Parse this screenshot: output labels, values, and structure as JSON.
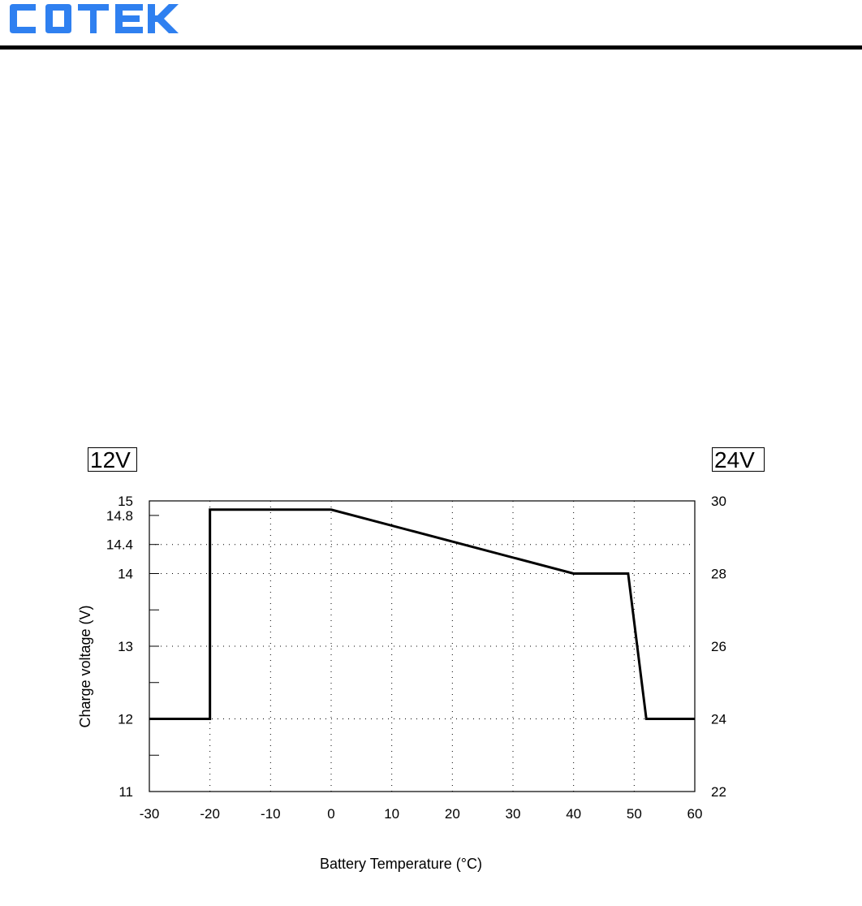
{
  "header": {
    "logo_text": "COTEK",
    "logo_color": "#2f80f0"
  },
  "badges": {
    "left": "12V",
    "right": "24V"
  },
  "chart_data": {
    "type": "line",
    "xlabel": "Battery Temperature (°C)",
    "ylabel": "Charge voltage (V)",
    "xlim": [
      -30,
      60
    ],
    "ylim": [
      11,
      15
    ],
    "y2lim": [
      22,
      30
    ],
    "x_ticks": [
      -30,
      -20,
      -10,
      0,
      10,
      20,
      30,
      40,
      50,
      60
    ],
    "x_tick_labels": [
      "-30",
      "-20",
      "-10",
      "0",
      "10",
      "20",
      "30",
      "40",
      "50",
      "60"
    ],
    "y_ticks": [
      11,
      12,
      13,
      14,
      14.4,
      14.8,
      15
    ],
    "y_tick_labels": [
      "11",
      "12",
      "13",
      "14",
      "14.4",
      "14.8",
      "15"
    ],
    "y_minor_ticks": [
      11.5,
      12.5,
      13.5
    ],
    "y_grid": [
      12,
      13,
      14,
      14.4
    ],
    "y2_ticks": [
      22,
      24,
      26,
      28,
      30
    ],
    "y2_tick_labels": [
      "22",
      "24",
      "26",
      "28",
      "30"
    ],
    "grid": true,
    "line_color": "#000000",
    "series": [
      {
        "x": [
          -30,
          -20,
          -20,
          0,
          40,
          49,
          52,
          60
        ],
        "y": [
          12,
          12,
          14.88,
          14.88,
          14,
          14,
          12,
          12
        ]
      }
    ]
  }
}
